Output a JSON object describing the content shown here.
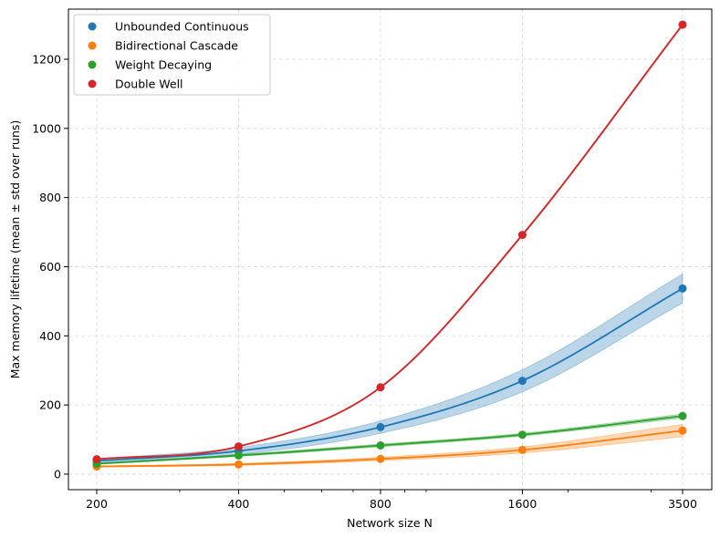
{
  "chart_data": {
    "type": "line",
    "xscale": "log",
    "x": [
      200,
      400,
      800,
      1600,
      3500
    ],
    "x_tick_labels": [
      "200",
      "400",
      "800",
      "1600",
      "3500"
    ],
    "xlabel": "Network size N",
    "ylabel": "Max memory lifetime (mean ± std over runs)",
    "ylim": [
      -45,
      1345
    ],
    "y_ticks": [
      0,
      200,
      400,
      600,
      800,
      1000,
      1200
    ],
    "y_tick_labels": [
      "0",
      "200",
      "400",
      "600",
      "800",
      "1000",
      "1200"
    ],
    "grid": true,
    "legend_position": "top-left",
    "series": [
      {
        "name": "Unbounded Continuous",
        "color": "#1f77b4",
        "values": [
          38,
          67,
          136,
          270,
          537
        ],
        "std": [
          6,
          10,
          18,
          32,
          42
        ]
      },
      {
        "name": "Bidirectional Cascade",
        "color": "#ff7f0e",
        "values": [
          22,
          28,
          44,
          70,
          126
        ],
        "std": [
          2,
          3,
          5,
          9,
          18
        ]
      },
      {
        "name": "Weight Decaying",
        "color": "#2ca02c",
        "values": [
          30,
          54,
          83,
          114,
          168
        ],
        "std": [
          2,
          3,
          4,
          4,
          6
        ]
      },
      {
        "name": "Double Well",
        "color": "#d62728",
        "values": [
          43,
          80,
          251,
          692,
          1300
        ],
        "std": [
          1,
          1,
          2,
          3,
          3
        ]
      }
    ]
  }
}
